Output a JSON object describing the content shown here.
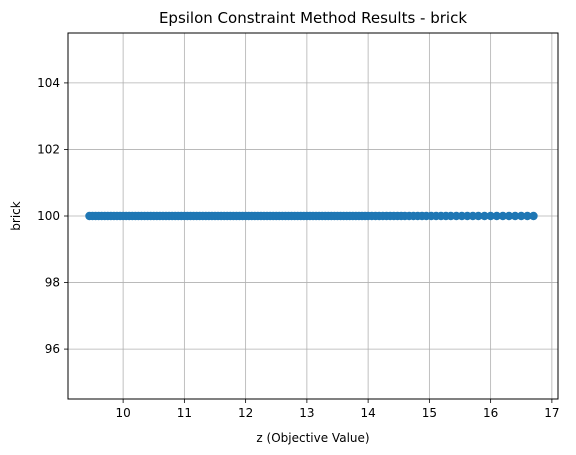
{
  "chart_data": {
    "type": "scatter",
    "title": "Epsilon Constraint Method Results - brick",
    "xlabel": "z (Objective Value)",
    "ylabel": "brick",
    "xlim": [
      9.1,
      17.1
    ],
    "ylim": [
      94.5,
      105.5
    ],
    "xticks": [
      10,
      11,
      12,
      13,
      14,
      15,
      16,
      17
    ],
    "yticks": [
      96,
      98,
      100,
      102,
      104
    ],
    "grid": true,
    "marker_color": "#1f77b4",
    "series": [
      {
        "x": [
          9.45,
          9.5,
          9.55,
          9.6,
          9.65,
          9.7,
          9.75,
          9.8,
          9.85,
          9.9,
          9.95,
          10.0,
          10.05,
          10.1,
          10.15,
          10.2,
          10.25,
          10.3,
          10.35,
          10.4,
          10.45,
          10.5,
          10.55,
          10.6,
          10.65,
          10.7,
          10.75,
          10.8,
          10.85,
          10.9,
          10.95,
          11.0,
          11.05,
          11.1,
          11.15,
          11.2,
          11.25,
          11.3,
          11.35,
          11.4,
          11.45,
          11.5,
          11.55,
          11.6,
          11.65,
          11.7,
          11.75,
          11.8,
          11.85,
          11.9,
          11.95,
          12.0,
          12.05,
          12.1,
          12.15,
          12.2,
          12.25,
          12.3,
          12.35,
          12.4,
          12.45,
          12.5,
          12.55,
          12.6,
          12.65,
          12.7,
          12.75,
          12.8,
          12.85,
          12.9,
          12.95,
          13.0,
          13.05,
          13.1,
          13.15,
          13.2,
          13.25,
          13.3,
          13.35,
          13.4,
          13.45,
          13.5,
          13.55,
          13.6,
          13.65,
          13.7,
          13.75,
          13.8,
          13.85,
          13.9,
          13.95,
          14.0,
          14.06,
          14.12,
          14.18,
          14.24,
          14.3,
          14.36,
          14.42,
          14.48,
          14.54,
          14.6,
          14.67,
          14.74,
          14.81,
          14.88,
          14.95,
          15.03,
          15.11,
          15.19,
          15.27,
          15.35,
          15.44,
          15.53,
          15.62,
          15.71,
          15.8,
          15.9,
          16.0,
          16.1,
          16.2,
          16.3,
          16.4,
          16.5,
          16.6,
          16.7
        ],
        "y": [
          100,
          100,
          100,
          100,
          100,
          100,
          100,
          100,
          100,
          100,
          100,
          100,
          100,
          100,
          100,
          100,
          100,
          100,
          100,
          100,
          100,
          100,
          100,
          100,
          100,
          100,
          100,
          100,
          100,
          100,
          100,
          100,
          100,
          100,
          100,
          100,
          100,
          100,
          100,
          100,
          100,
          100,
          100,
          100,
          100,
          100,
          100,
          100,
          100,
          100,
          100,
          100,
          100,
          100,
          100,
          100,
          100,
          100,
          100,
          100,
          100,
          100,
          100,
          100,
          100,
          100,
          100,
          100,
          100,
          100,
          100,
          100,
          100,
          100,
          100,
          100,
          100,
          100,
          100,
          100,
          100,
          100,
          100,
          100,
          100,
          100,
          100,
          100,
          100,
          100,
          100,
          100,
          100,
          100,
          100,
          100,
          100,
          100,
          100,
          100,
          100,
          100,
          100,
          100,
          100,
          100,
          100,
          100,
          100,
          100,
          100,
          100,
          100,
          100,
          100,
          100,
          100,
          100,
          100,
          100,
          100,
          100,
          100,
          100,
          100,
          100
        ]
      }
    ]
  }
}
